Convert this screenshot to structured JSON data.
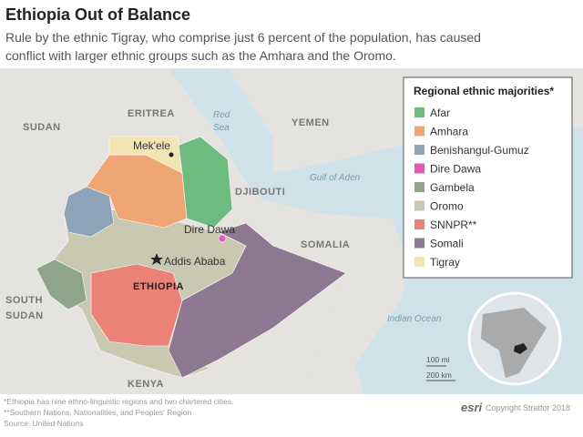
{
  "header": {
    "title": "Ethiopia Out of Balance",
    "subtitle_lines": [
      "Rule by the ethnic Tigray, who comprise just 6 percent of the population, has caused",
      "conflict with larger ethnic groups such as the Amhara and the Oromo."
    ]
  },
  "map": {
    "countries": [
      "SUDAN",
      "ERITREA",
      "YEMEN",
      "DJIBOUTI",
      "SOMALIA",
      "SOUTH",
      "SUDAN",
      "KENYA",
      "ETHIOPIA"
    ],
    "seas": [
      "Red",
      "Sea",
      "Gulf of Aden",
      "Indian Ocean"
    ],
    "cities": [
      "Mek'ele",
      "Dire Dawa",
      "Addis Ababa"
    ]
  },
  "legend": {
    "title": "Regional ethnic majorities*",
    "items": [
      {
        "name": "Afar",
        "color": "#6dbb7e"
      },
      {
        "name": "Amhara",
        "color": "#f0a574"
      },
      {
        "name": "Benishangul-Gumuz",
        "color": "#8ea2b8"
      },
      {
        "name": "Dire Dawa",
        "color": "#e05bb8"
      },
      {
        "name": "Gambela",
        "color": "#8fa58a"
      },
      {
        "name": "Oromo",
        "color": "#c9c8b1"
      },
      {
        "name": "SNNPR**",
        "color": "#ea8277"
      },
      {
        "name": "Somali",
        "color": "#8e7790"
      },
      {
        "name": "Tigray",
        "color": "#f3e4b6"
      }
    ]
  },
  "scale": [
    "100 mi",
    "200 km"
  ],
  "footnotes": [
    "*Ethiopia has nine ethno-linguistic regions and two chartered cities.",
    "**Southern Nations, Nationalities, and Peoples' Region",
    "Source: United Nations"
  ],
  "credits": {
    "logo": "esri",
    "copyright": "Copyright Stratfor 2018"
  }
}
